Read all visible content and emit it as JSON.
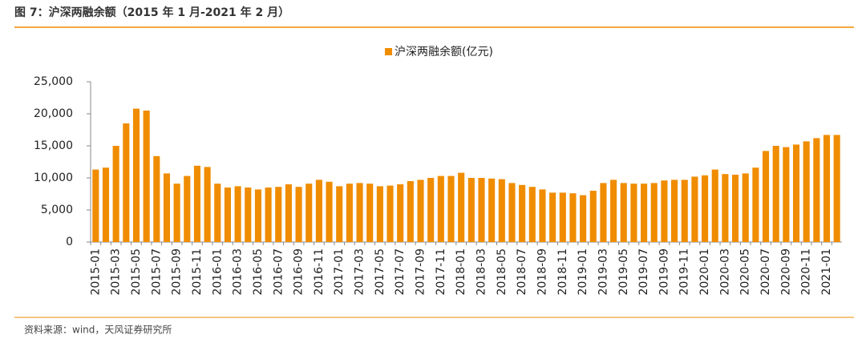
{
  "header": {
    "title": "图 7：沪深两融余额（2015 年 1 月-2021 年 2 月）"
  },
  "chart_data": {
    "type": "bar",
    "categories": [
      "2015-01",
      null,
      "2015-03",
      null,
      "2015-05",
      null,
      "2015-07",
      null,
      "2015-09",
      null,
      "2015-11",
      null,
      "2016-01",
      null,
      "2016-03",
      null,
      "2016-05",
      null,
      "2016-07",
      null,
      "2016-09",
      null,
      "2016-11",
      null,
      "2017-01",
      null,
      "2017-03",
      null,
      "2017-05",
      null,
      "2017-07",
      null,
      "2017-09",
      null,
      "2017-11",
      null,
      "2018-01",
      null,
      "2018-03",
      null,
      "2018-05",
      null,
      "2018-07",
      null,
      "2018-09",
      null,
      "2018-11",
      null,
      "2019-01",
      null,
      "2019-03",
      null,
      "2019-05",
      null,
      "2019-07",
      null,
      "2019-09",
      null,
      "2019-11",
      null,
      "2020-01",
      null,
      "2020-03",
      null,
      "2020-05",
      null,
      "2020-07",
      null,
      "2020-09",
      null,
      "2020-11",
      null,
      "2021-01",
      null
    ],
    "series": [
      {
        "name": "沪深两融余额(亿元)",
        "color": "#f08c00",
        "values": [
          11300,
          11600,
          15000,
          18500,
          20800,
          20500,
          13400,
          10700,
          9100,
          10300,
          11900,
          11700,
          9100,
          8500,
          8700,
          8500,
          8200,
          8500,
          8600,
          9000,
          8600,
          9100,
          9700,
          9400,
          8700,
          9100,
          9200,
          9100,
          8700,
          8800,
          9000,
          9500,
          9700,
          10000,
          10300,
          10300,
          10800,
          10000,
          10000,
          9900,
          9800,
          9200,
          8900,
          8600,
          8200,
          7700,
          7700,
          7600,
          7300,
          8000,
          9200,
          9700,
          9200,
          9100,
          9100,
          9200,
          9600,
          9700,
          9700,
          10200,
          10400,
          11300,
          10600,
          10500,
          10700,
          11600,
          14200,
          15000,
          14800,
          15200,
          15700,
          16200,
          16700,
          16700
        ]
      }
    ],
    "ylim": [
      0,
      25000
    ],
    "yticks": [
      0,
      {
        "value": 5000,
        "label": "5,000"
      },
      {
        "value": 10000,
        "label": "10,000"
      },
      {
        "value": 15000,
        "label": "15,000"
      },
      {
        "value": 20000,
        "label": "20,000"
      },
      {
        "value": 25000,
        "label": "25,000"
      }
    ],
    "grid": false,
    "legend": "top"
  },
  "footer": {
    "source": "资料来源：wind，天风证券研究所"
  }
}
